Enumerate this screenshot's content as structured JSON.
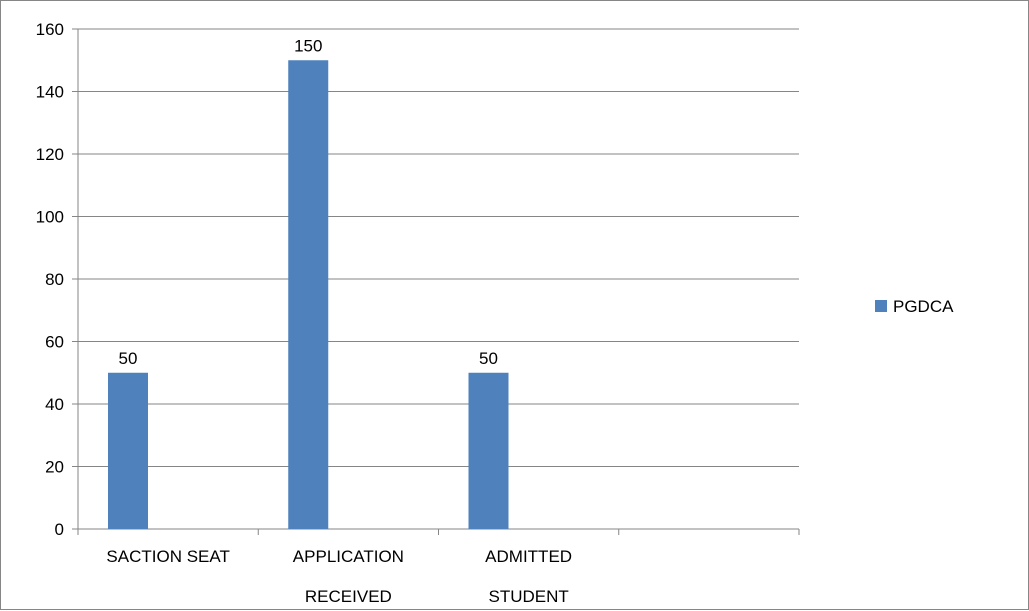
{
  "chart_data": {
    "type": "bar",
    "categories": [
      [
        "SACTION SEAT"
      ],
      [
        "APPLICATION",
        "RECEIVED"
      ],
      [
        "ADMITTED",
        "STUDENT"
      ],
      [
        ""
      ]
    ],
    "series": [
      {
        "name": "PGDCA",
        "values": [
          50,
          150,
          50,
          null
        ]
      }
    ],
    "data_labels": [
      "50",
      "150",
      "50",
      ""
    ],
    "ylim": [
      0,
      160
    ],
    "yticks": [
      0,
      20,
      40,
      60,
      80,
      100,
      120,
      140,
      160
    ],
    "grid": true,
    "legend_position": "right",
    "colors": {
      "bar": "#4f81bd",
      "grid": "#868686",
      "axis": "#868686"
    },
    "title": "",
    "xlabel": "",
    "ylabel": ""
  }
}
